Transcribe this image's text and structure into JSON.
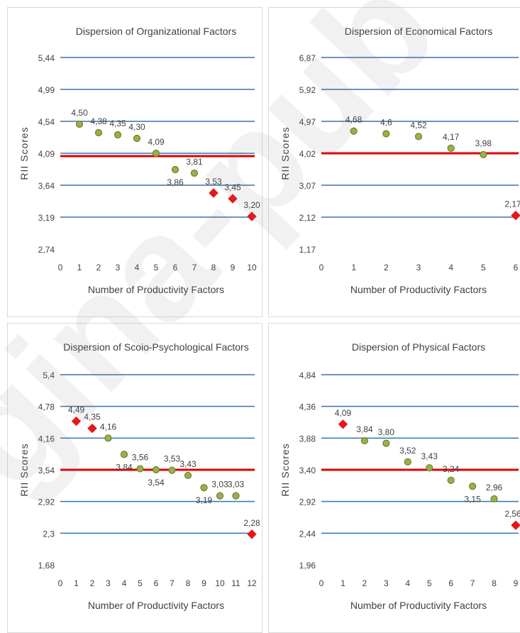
{
  "watermark": {
    "text": "gina-pub"
  },
  "chart_data": [
    {
      "type": "scatter",
      "title": "Dispersion of Organizational Factors",
      "xlabel": "Number of Productivity Factors",
      "ylabel": "RII Scores",
      "xlim": [
        0,
        10
      ],
      "ylim": [
        2.74,
        5.44
      ],
      "y_ticks": [
        "2,74",
        "3,19",
        "3,64",
        "4,09",
        "4,54",
        "4,99",
        "5,44"
      ],
      "x_ticks": [
        "0",
        "1",
        "2",
        "3",
        "4",
        "5",
        "6",
        "7",
        "8",
        "9",
        "10"
      ],
      "average_line": 4.05,
      "points": [
        {
          "x": 1,
          "y": 4.5,
          "label": "4,50",
          "marker": "circle"
        },
        {
          "x": 2,
          "y": 4.38,
          "label": "4,38",
          "marker": "circle"
        },
        {
          "x": 3,
          "y": 4.35,
          "label": "4,35",
          "marker": "circle"
        },
        {
          "x": 4,
          "y": 4.3,
          "label": "4,30",
          "marker": "circle"
        },
        {
          "x": 5,
          "y": 4.09,
          "label": "4,09",
          "marker": "circle"
        },
        {
          "x": 6,
          "y": 3.86,
          "label": "3,86",
          "marker": "circle"
        },
        {
          "x": 7,
          "y": 3.81,
          "label": "3,81",
          "marker": "circle"
        },
        {
          "x": 8,
          "y": 3.53,
          "label": "3,53",
          "marker": "diamond"
        },
        {
          "x": 9,
          "y": 3.45,
          "label": "3,45",
          "marker": "diamond"
        },
        {
          "x": 10,
          "y": 3.2,
          "label": "3,20",
          "marker": "diamond"
        }
      ]
    },
    {
      "type": "scatter",
      "title": "Dispersion of Economical Factors",
      "xlabel": "Number of Productivity Factors",
      "ylabel": "RII Scores",
      "xlim": [
        0,
        6
      ],
      "ylim": [
        1.17,
        6.87
      ],
      "y_ticks": [
        "1,17",
        "2,12",
        "3,07",
        "4,02",
        "4,97",
        "5,92",
        "6,87"
      ],
      "x_ticks": [
        "0",
        "1",
        "2",
        "3",
        "4",
        "5",
        "6"
      ],
      "average_line": 4.02,
      "points": [
        {
          "x": 1,
          "y": 4.68,
          "label": "4,68",
          "marker": "circle"
        },
        {
          "x": 2,
          "y": 4.6,
          "label": "4,6",
          "marker": "circle"
        },
        {
          "x": 3,
          "y": 4.52,
          "label": "4,52",
          "marker": "circle"
        },
        {
          "x": 4,
          "y": 4.17,
          "label": "4,17",
          "marker": "circle"
        },
        {
          "x": 5,
          "y": 3.98,
          "label": "3,98",
          "marker": "circle"
        },
        {
          "x": 6,
          "y": 2.17,
          "label": "2,17",
          "marker": "diamond"
        }
      ]
    },
    {
      "type": "scatter",
      "title": "Dispersion of Scoio-Psychological Factors",
      "xlabel": "Number of Productivity Factors",
      "ylabel": "RII Scores",
      "xlim": [
        0,
        12
      ],
      "ylim": [
        1.68,
        5.4
      ],
      "y_ticks": [
        "1,68",
        "2,3",
        "2,92",
        "3,54",
        "4,16",
        "4,78",
        "5,4"
      ],
      "x_ticks": [
        "0",
        "1",
        "2",
        "3",
        "4",
        "5",
        "6",
        "7",
        "8",
        "9",
        "10",
        "11",
        "12"
      ],
      "average_line": 3.54,
      "points": [
        {
          "x": 1,
          "y": 4.49,
          "label": "4,49",
          "marker": "diamond"
        },
        {
          "x": 2,
          "y": 4.35,
          "label": "4,35",
          "marker": "diamond"
        },
        {
          "x": 3,
          "y": 4.16,
          "label": "4,16",
          "marker": "circle"
        },
        {
          "x": 4,
          "y": 3.84,
          "label": "3,84",
          "marker": "circle"
        },
        {
          "x": 5,
          "y": 3.56,
          "label": "3,56",
          "marker": "circle"
        },
        {
          "x": 6,
          "y": 3.54,
          "label": "3,54",
          "marker": "circle"
        },
        {
          "x": 7,
          "y": 3.53,
          "label": "3,53",
          "marker": "circle"
        },
        {
          "x": 8,
          "y": 3.43,
          "label": "3,43",
          "marker": "circle"
        },
        {
          "x": 9,
          "y": 3.19,
          "label": "3,19",
          "marker": "circle"
        },
        {
          "x": 10,
          "y": 3.03,
          "label": "3,03",
          "marker": "circle"
        },
        {
          "x": 11,
          "y": 3.03,
          "label": "3,03",
          "marker": "circle"
        },
        {
          "x": 12,
          "y": 2.28,
          "label": "2,28",
          "marker": "diamond"
        }
      ]
    },
    {
      "type": "scatter",
      "title": "Dispersion of Physical Factors",
      "xlabel": "Number of Productivity Factors",
      "ylabel": "RII Scores",
      "xlim": [
        0,
        9
      ],
      "ylim": [
        1.96,
        4.84
      ],
      "y_ticks": [
        "1,96",
        "2,44",
        "2,92",
        "3,40",
        "3,88",
        "4,36",
        "4,84"
      ],
      "x_ticks": [
        "0",
        "1",
        "2",
        "3",
        "4",
        "5",
        "6",
        "7",
        "8",
        "9"
      ],
      "average_line": 3.4,
      "points": [
        {
          "x": 1,
          "y": 4.09,
          "label": "4,09",
          "marker": "diamond"
        },
        {
          "x": 2,
          "y": 3.84,
          "label": "3,84",
          "marker": "circle"
        },
        {
          "x": 3,
          "y": 3.8,
          "label": "3,80",
          "marker": "circle"
        },
        {
          "x": 4,
          "y": 3.52,
          "label": "3,52",
          "marker": "circle"
        },
        {
          "x": 5,
          "y": 3.43,
          "label": "3,43",
          "marker": "circle"
        },
        {
          "x": 6,
          "y": 3.24,
          "label": "3,24",
          "marker": "circle"
        },
        {
          "x": 7,
          "y": 3.15,
          "label": "3,15",
          "marker": "circle"
        },
        {
          "x": 8,
          "y": 2.96,
          "label": "2,96",
          "marker": "circle"
        },
        {
          "x": 9,
          "y": 2.56,
          "label": "2,56",
          "marker": "diamond"
        }
      ]
    }
  ],
  "colors": {
    "gridline": "#2e75b6",
    "average_line": "#e00000",
    "circle_fill": "#9bb04a",
    "circle_stroke": "#6e7f2a",
    "diamond_fill": "#e61717",
    "text": "#404040",
    "watermark": "#7f7f7f"
  }
}
